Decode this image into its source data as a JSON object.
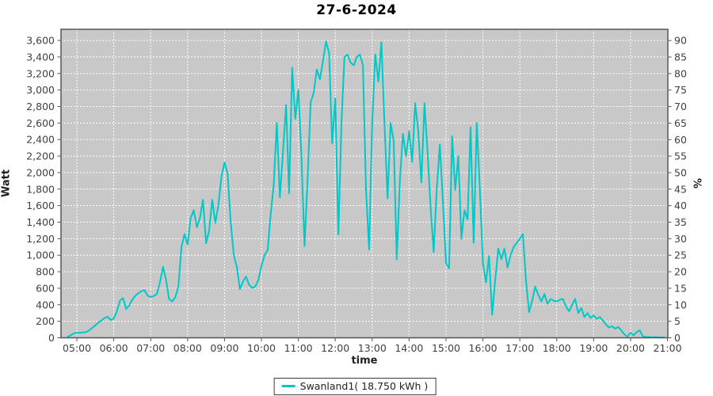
{
  "title": "27-6-2024",
  "axes": {
    "y_left": {
      "label": "Watt"
    },
    "y_right": {
      "label": "%"
    },
    "x": {
      "label": "time"
    }
  },
  "legend": {
    "label": "Swanland1( 18.750 kWh )"
  },
  "colors": {
    "plot_bg": "#C8C8C8",
    "grid": "#FFFFFF",
    "line": "#00C8C8",
    "plot_border": "#545454",
    "tick_text": "#3F3F3F",
    "title_text": "#000000"
  },
  "chart_data": {
    "type": "line",
    "title": "27-6-2024",
    "xlabel": "time",
    "ylabel": "Watt",
    "ylabel_right": "%",
    "grid": "white dashed on gray plot background",
    "legend_position": "bottom-center",
    "xlim_hours": [
      4.57,
      21.01
    ],
    "ylim": [
      0,
      3735
    ],
    "y2lim": [
      0,
      93.4
    ],
    "x_ticks": [
      {
        "t": 5,
        "label": "05:00"
      },
      {
        "t": 6,
        "label": "06:00"
      },
      {
        "t": 7,
        "label": "07:00"
      },
      {
        "t": 8,
        "label": "08:00"
      },
      {
        "t": 9,
        "label": "09:00"
      },
      {
        "t": 10,
        "label": "10:00"
      },
      {
        "t": 11,
        "label": "11:00"
      },
      {
        "t": 12,
        "label": "12:00"
      },
      {
        "t": 13,
        "label": "13:00"
      },
      {
        "t": 14,
        "label": "14:00"
      },
      {
        "t": 15,
        "label": "15:00"
      },
      {
        "t": 16,
        "label": "16:00"
      },
      {
        "t": 17,
        "label": "17:00"
      },
      {
        "t": 18,
        "label": "18:00"
      },
      {
        "t": 19,
        "label": "19:00"
      },
      {
        "t": 20,
        "label": "20:00"
      },
      {
        "t": 21,
        "label": "21:00"
      }
    ],
    "y_left_ticks": [
      {
        "v": 0,
        "label": "0"
      },
      {
        "v": 200,
        "label": "200"
      },
      {
        "v": 400,
        "label": "400"
      },
      {
        "v": 600,
        "label": "600"
      },
      {
        "v": 800,
        "label": "800"
      },
      {
        "v": 1000,
        "label": "1,000"
      },
      {
        "v": 1200,
        "label": "1,200"
      },
      {
        "v": 1400,
        "label": "1,400"
      },
      {
        "v": 1600,
        "label": "1,600"
      },
      {
        "v": 1800,
        "label": "1,800"
      },
      {
        "v": 2000,
        "label": "2,000"
      },
      {
        "v": 2200,
        "label": "2,200"
      },
      {
        "v": 2400,
        "label": "2,400"
      },
      {
        "v": 2600,
        "label": "2,600"
      },
      {
        "v": 2800,
        "label": "2,800"
      },
      {
        "v": 3000,
        "label": "3,000"
      },
      {
        "v": 3200,
        "label": "3,200"
      },
      {
        "v": 3400,
        "label": "3,400"
      },
      {
        "v": 3600,
        "label": "3,600"
      }
    ],
    "y_right_ticks": [
      {
        "v": 0,
        "label": "0"
      },
      {
        "v": 5,
        "label": "5"
      },
      {
        "v": 10,
        "label": "10"
      },
      {
        "v": 15,
        "label": "15"
      },
      {
        "v": 20,
        "label": "20"
      },
      {
        "v": 25,
        "label": "25"
      },
      {
        "v": 30,
        "label": "30"
      },
      {
        "v": 35,
        "label": "35"
      },
      {
        "v": 40,
        "label": "40"
      },
      {
        "v": 45,
        "label": "45"
      },
      {
        "v": 50,
        "label": "50"
      },
      {
        "v": 55,
        "label": "55"
      },
      {
        "v": 60,
        "label": "60"
      },
      {
        "v": 65,
        "label": "65"
      },
      {
        "v": 70,
        "label": "70"
      },
      {
        "v": 75,
        "label": "75"
      },
      {
        "v": 80,
        "label": "80"
      },
      {
        "v": 85,
        "label": "85"
      },
      {
        "v": 90,
        "label": "90"
      }
    ],
    "series": [
      {
        "name": "Swanland1",
        "energy_label": "18.750 kWh",
        "color": "#00C8C8",
        "points": [
          [
            "04:45",
            10
          ],
          [
            "04:50",
            30
          ],
          [
            "04:55",
            55
          ],
          [
            "05:00",
            60
          ],
          [
            "05:05",
            60
          ],
          [
            "05:10",
            65
          ],
          [
            "05:15",
            70
          ],
          [
            "05:20",
            90
          ],
          [
            "05:25",
            120
          ],
          [
            "05:30",
            150
          ],
          [
            "05:35",
            185
          ],
          [
            "05:40",
            210
          ],
          [
            "05:45",
            240
          ],
          [
            "05:50",
            255
          ],
          [
            "05:55",
            215
          ],
          [
            "06:00",
            235
          ],
          [
            "06:05",
            320
          ],
          [
            "06:10",
            450
          ],
          [
            "06:15",
            480
          ],
          [
            "06:20",
            350
          ],
          [
            "06:25",
            390
          ],
          [
            "06:30",
            460
          ],
          [
            "06:35",
            510
          ],
          [
            "06:40",
            540
          ],
          [
            "06:45",
            565
          ],
          [
            "06:50",
            575
          ],
          [
            "06:55",
            510
          ],
          [
            "07:00",
            495
          ],
          [
            "07:05",
            505
          ],
          [
            "07:10",
            530
          ],
          [
            "07:15",
            670
          ],
          [
            "07:20",
            860
          ],
          [
            "07:25",
            700
          ],
          [
            "07:30",
            470
          ],
          [
            "07:35",
            440
          ],
          [
            "07:40",
            490
          ],
          [
            "07:45",
            620
          ],
          [
            "07:50",
            1100
          ],
          [
            "07:55",
            1255
          ],
          [
            "08:00",
            1130
          ],
          [
            "08:05",
            1450
          ],
          [
            "08:10",
            1545
          ],
          [
            "08:15",
            1340
          ],
          [
            "08:20",
            1450
          ],
          [
            "08:25",
            1670
          ],
          [
            "08:30",
            1145
          ],
          [
            "08:35",
            1300
          ],
          [
            "08:40",
            1670
          ],
          [
            "08:45",
            1390
          ],
          [
            "08:50",
            1600
          ],
          [
            "08:55",
            1950
          ],
          [
            "09:00",
            2120
          ],
          [
            "09:05",
            1990
          ],
          [
            "09:10",
            1400
          ],
          [
            "09:15",
            1000
          ],
          [
            "09:20",
            860
          ],
          [
            "09:25",
            590
          ],
          [
            "09:30",
            680
          ],
          [
            "09:35",
            740
          ],
          [
            "09:40",
            640
          ],
          [
            "09:45",
            605
          ],
          [
            "09:50",
            620
          ],
          [
            "09:55",
            700
          ],
          [
            "10:00",
            870
          ],
          [
            "10:05",
            1000
          ],
          [
            "10:10",
            1060
          ],
          [
            "10:15",
            1500
          ],
          [
            "10:20",
            1850
          ],
          [
            "10:25",
            2600
          ],
          [
            "10:30",
            1700
          ],
          [
            "10:35",
            2250
          ],
          [
            "10:40",
            2820
          ],
          [
            "10:45",
            1750
          ],
          [
            "10:50",
            3270
          ],
          [
            "10:55",
            2650
          ],
          [
            "11:00",
            3000
          ],
          [
            "11:05",
            2200
          ],
          [
            "11:10",
            1110
          ],
          [
            "11:15",
            1900
          ],
          [
            "11:20",
            2850
          ],
          [
            "11:25",
            2970
          ],
          [
            "11:30",
            3250
          ],
          [
            "11:35",
            3130
          ],
          [
            "11:40",
            3350
          ],
          [
            "11:45",
            3590
          ],
          [
            "11:50",
            3450
          ],
          [
            "11:55",
            2350
          ],
          [
            "12:00",
            2900
          ],
          [
            "12:05",
            1250
          ],
          [
            "12:10",
            2600
          ],
          [
            "12:15",
            3400
          ],
          [
            "12:20",
            3430
          ],
          [
            "12:25",
            3330
          ],
          [
            "12:30",
            3300
          ],
          [
            "12:35",
            3400
          ],
          [
            "12:40",
            3430
          ],
          [
            "12:45",
            3300
          ],
          [
            "12:50",
            1800
          ],
          [
            "12:55",
            1070
          ],
          [
            "13:00",
            2600
          ],
          [
            "13:05",
            3430
          ],
          [
            "13:10",
            3100
          ],
          [
            "13:15",
            3580
          ],
          [
            "13:20",
            2600
          ],
          [
            "13:25",
            1690
          ],
          [
            "13:30",
            2600
          ],
          [
            "13:35",
            2380
          ],
          [
            "13:40",
            950
          ],
          [
            "13:45",
            1900
          ],
          [
            "13:50",
            2470
          ],
          [
            "13:55",
            2200
          ],
          [
            "14:00",
            2500
          ],
          [
            "14:05",
            2130
          ],
          [
            "14:10",
            2840
          ],
          [
            "14:15",
            2500
          ],
          [
            "14:20",
            1880
          ],
          [
            "14:25",
            2840
          ],
          [
            "14:30",
            2250
          ],
          [
            "14:35",
            1570
          ],
          [
            "14:40",
            1040
          ],
          [
            "14:45",
            1800
          ],
          [
            "14:50",
            2340
          ],
          [
            "14:55",
            1640
          ],
          [
            "15:00",
            905
          ],
          [
            "15:05",
            840
          ],
          [
            "15:10",
            2440
          ],
          [
            "15:15",
            1790
          ],
          [
            "15:20",
            2200
          ],
          [
            "15:25",
            1200
          ],
          [
            "15:30",
            1545
          ],
          [
            "15:35",
            1435
          ],
          [
            "15:40",
            2550
          ],
          [
            "15:45",
            1150
          ],
          [
            "15:50",
            2600
          ],
          [
            "15:55",
            1800
          ],
          [
            "16:00",
            900
          ],
          [
            "16:05",
            670
          ],
          [
            "16:10",
            990
          ],
          [
            "16:15",
            280
          ],
          [
            "16:20",
            700
          ],
          [
            "16:25",
            1080
          ],
          [
            "16:30",
            950
          ],
          [
            "16:35",
            1080
          ],
          [
            "16:40",
            850
          ],
          [
            "16:45",
            1000
          ],
          [
            "16:50",
            1100
          ],
          [
            "16:55",
            1150
          ],
          [
            "17:00",
            1200
          ],
          [
            "17:05",
            1255
          ],
          [
            "17:10",
            700
          ],
          [
            "17:15",
            310
          ],
          [
            "17:20",
            450
          ],
          [
            "17:25",
            620
          ],
          [
            "17:30",
            520
          ],
          [
            "17:35",
            440
          ],
          [
            "17:40",
            530
          ],
          [
            "17:45",
            410
          ],
          [
            "17:50",
            470
          ],
          [
            "17:55",
            450
          ],
          [
            "18:00",
            440
          ],
          [
            "18:05",
            460
          ],
          [
            "18:10",
            470
          ],
          [
            "18:15",
            380
          ],
          [
            "18:20",
            320
          ],
          [
            "18:25",
            400
          ],
          [
            "18:30",
            470
          ],
          [
            "18:35",
            300
          ],
          [
            "18:40",
            360
          ],
          [
            "18:45",
            250
          ],
          [
            "18:50",
            300
          ],
          [
            "18:55",
            240
          ],
          [
            "19:00",
            270
          ],
          [
            "19:05",
            230
          ],
          [
            "19:10",
            250
          ],
          [
            "19:15",
            210
          ],
          [
            "19:20",
            160
          ],
          [
            "19:25",
            125
          ],
          [
            "19:30",
            140
          ],
          [
            "19:35",
            110
          ],
          [
            "19:40",
            130
          ],
          [
            "19:45",
            90
          ],
          [
            "19:50",
            40
          ],
          [
            "19:55",
            15
          ],
          [
            "20:00",
            60
          ],
          [
            "20:05",
            30
          ],
          [
            "20:10",
            70
          ],
          [
            "20:15",
            90
          ],
          [
            "20:20",
            15
          ],
          [
            "20:25",
            10
          ],
          [
            "20:30",
            10
          ],
          [
            "20:35",
            5
          ],
          [
            "20:40",
            10
          ],
          [
            "20:45",
            5
          ],
          [
            "20:50",
            5
          ],
          [
            "20:55",
            5
          ]
        ]
      }
    ]
  }
}
